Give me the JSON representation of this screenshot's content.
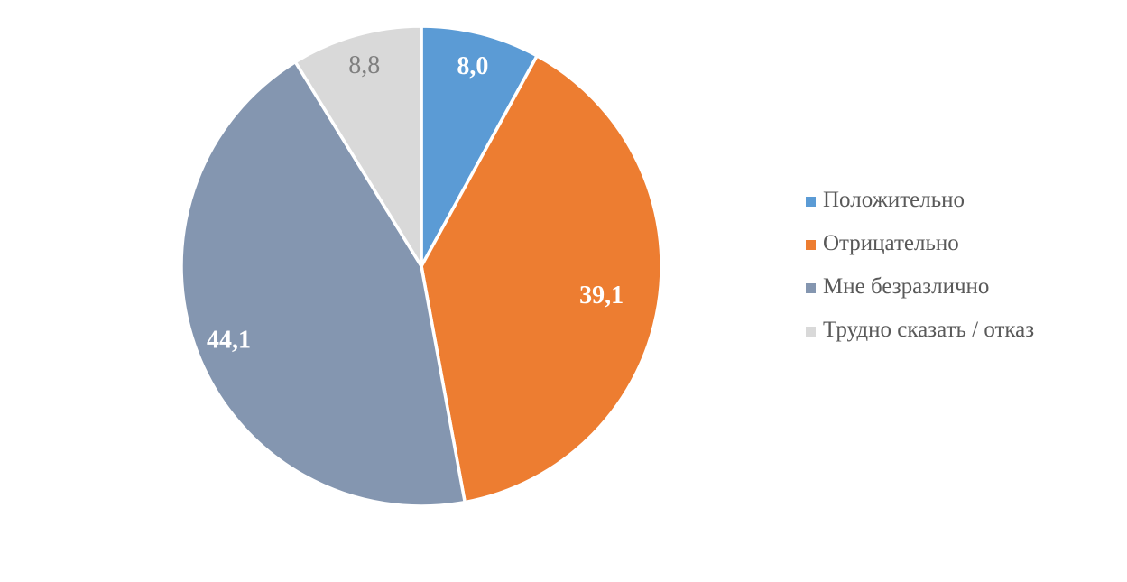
{
  "chart_data": {
    "type": "pie",
    "title": "",
    "categories": [
      "Положительно",
      "Отрицательно",
      "Мне безразлично",
      "Трудно сказать / отказ"
    ],
    "values": [
      8.0,
      39.1,
      44.1,
      8.8
    ],
    "value_labels": [
      "8,0",
      "39,1",
      "44,1",
      "8,8"
    ],
    "colors": [
      "#5B9BD5",
      "#ED7D31",
      "#8496B0",
      "#D9D9D9"
    ],
    "value_label_colors": [
      "#FFFFFF",
      "#FFFFFF",
      "#FFFFFF",
      "#7F7F7F"
    ],
    "value_label_weights": [
      "bold",
      "bold",
      "bold",
      "normal"
    ],
    "value_label_radius": [
      0.86,
      0.76,
      0.86,
      0.87
    ],
    "start_angle_deg": 0,
    "direction": "clockwise",
    "slice_border_color": "#FFFFFF",
    "legend_position": "right",
    "legend_text_color": "#595959",
    "background": "#FFFFFF"
  }
}
